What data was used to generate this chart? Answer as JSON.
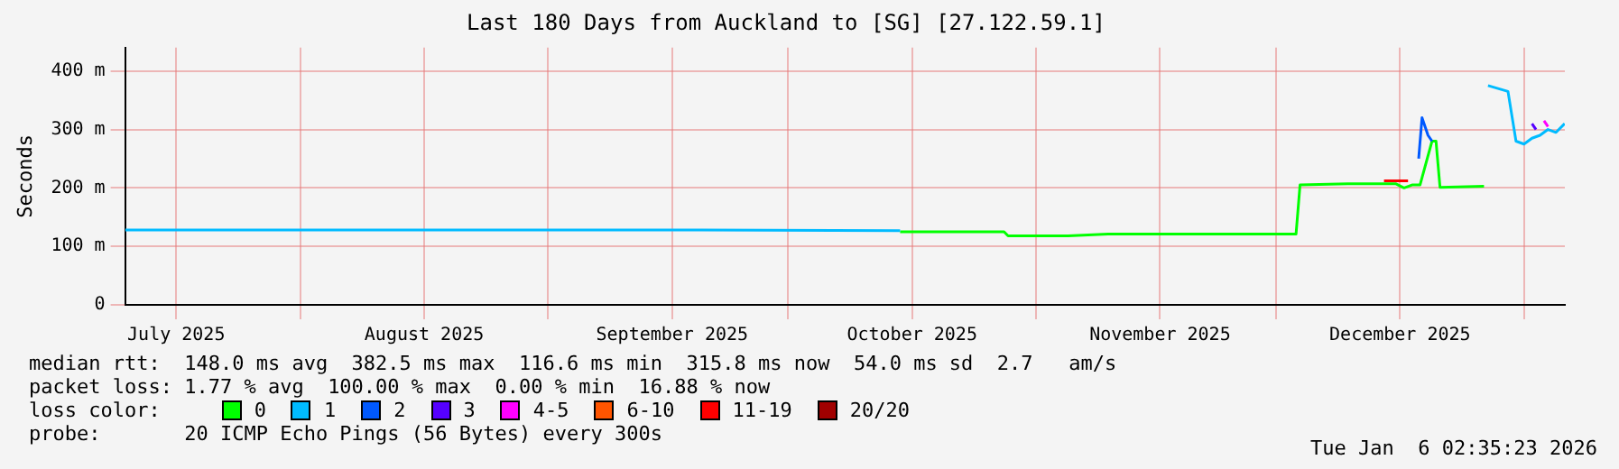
{
  "chart_data": {
    "type": "line",
    "title": "Last 180 Days from Auckland to [SG] [27.122.59.1]",
    "ylabel": "Seconds",
    "legend_title": "loss color:",
    "legend": "bottom",
    "grid": true,
    "marker": "none",
    "line_style": "solid",
    "xlim": [
      "2025-07-10T02:35",
      "2026-01-06T02:35"
    ],
    "xticks": [
      {
        "value": "2025-07-16T12:00",
        "label": "July 2025"
      },
      {
        "value": "2025-08-01",
        "label": null
      },
      {
        "value": "2025-08-16T12:00",
        "label": "August 2025"
      },
      {
        "value": "2025-09-01",
        "label": null
      },
      {
        "value": "2025-09-16T12:00",
        "label": "September 2025"
      },
      {
        "value": "2025-10-01",
        "label": null
      },
      {
        "value": "2025-10-16T12:00",
        "label": "October 2025"
      },
      {
        "value": "2025-11-01",
        "label": null
      },
      {
        "value": "2025-11-16T12:00",
        "label": "November 2025"
      },
      {
        "value": "2025-12-01",
        "label": null
      },
      {
        "value": "2025-12-16T12:00",
        "label": "December 2025"
      },
      {
        "value": "2026-01-01",
        "label": null
      }
    ],
    "ylim": [
      0,
      440
    ],
    "yticks": [
      0,
      {
        "value": 100,
        "label": "100 m"
      },
      {
        "value": 200,
        "label": "200 m"
      },
      {
        "value": 300,
        "label": "300 m"
      },
      {
        "value": 400,
        "label": "400 m"
      }
    ],
    "series": [
      {
        "name": "0",
        "color": "#00ff00",
        "x": [
          "2025-10-15",
          "2025-10-28",
          "2025-10-28T12:00",
          "2025-11-05",
          "2025-11-10",
          "2025-11-20",
          "2025-12-01",
          "2025-12-03T12:00",
          "2025-12-04",
          "2025-12-10",
          "2025-12-16",
          "2025-12-17",
          "2025-12-18",
          "2025-12-19",
          "2025-12-20T12:00",
          "2025-12-21",
          "2025-12-21T12:00",
          "2025-12-27"
        ],
        "values": [
          125,
          125,
          118,
          118,
          121,
          121,
          121,
          121,
          205,
          207,
          207,
          200,
          205,
          205,
          280,
          280,
          201,
          203
        ]
      },
      {
        "name": "1",
        "color": "#00bbff",
        "x": [
          "2025-07-10T03:00",
          "2025-08-15",
          "2025-09-20",
          "2025-10-15",
          "2025-10-16",
          "2025-12-27T12:00",
          "2025-12-30",
          "2025-12-31",
          "2026-01-01",
          "2026-01-02",
          "2026-01-03",
          "2026-01-04",
          "2026-01-05",
          "2026-01-06T02:00"
        ],
        "values": [
          128,
          128,
          128,
          127,
          null,
          375,
          365,
          280,
          275,
          285,
          290,
          300,
          295,
          310
        ]
      },
      {
        "name": "2",
        "color": "#0059ff",
        "x": [
          "2025-12-18T20:00",
          "2025-12-19T06:00",
          "2025-12-20",
          "2025-12-20T12:00"
        ],
        "values": [
          250,
          320,
          290,
          280
        ]
      },
      {
        "name": "3",
        "color": "#5500ff",
        "x": [
          "2026-01-02",
          "2026-01-02T12:00"
        ],
        "values": [
          310,
          300
        ]
      },
      {
        "name": "4-5",
        "color": "#ff00ff",
        "x": [
          "2026-01-03T12:00",
          "2026-01-04"
        ],
        "values": [
          315,
          305
        ]
      },
      {
        "name": "6-10",
        "color": "#ff5500"
      },
      {
        "name": "11-19",
        "color": "#ff0000",
        "x": [
          "2025-12-14T12:00",
          "2025-12-17T12:00"
        ],
        "values": [
          212,
          212
        ]
      },
      {
        "name": "20/20",
        "color": "#a10000"
      }
    ],
    "annotations": [
      "median rtt:  148.0 ms avg  382.5 ms max  116.6 ms min  315.8 ms now  54.0 ms sd  2.7   am/s",
      "packet loss: 1.77 % avg  100.00 % max  0.00 % min  16.88 % now",
      "probe:       20 ICMP Echo Pings (56 Bytes) every 300s",
      "Tue Jan  6 02:35:23 2026"
    ]
  }
}
